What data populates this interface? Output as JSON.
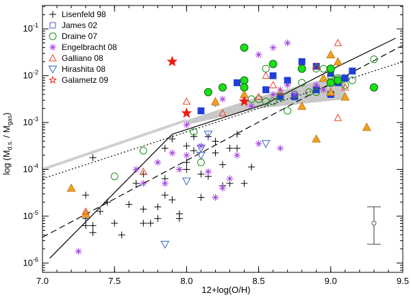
{
  "chart_data": {
    "type": "scatter",
    "xlabel": "12+log(O/H)",
    "ylabel": "log (M",
    "ylabel_sub1": "d.s.",
    "ylabel_mid": " / M",
    "ylabel_sub2": "gas",
    "ylabel_end": ")",
    "xlim": [
      7.0,
      9.5
    ],
    "ylim": [
      -6.2,
      -0.5
    ],
    "x_ticks": [
      7.0,
      7.5,
      8.0,
      8.5,
      9.0,
      9.5
    ],
    "x_tick_labels": [
      "7.0",
      "7.5",
      "8.0",
      "8.5",
      "9.0",
      "9.5"
    ],
    "y_ticks": [
      {
        "value": -1,
        "base": "10",
        "exp": "-1"
      },
      {
        "value": -2,
        "base": "10",
        "exp": "-2"
      },
      {
        "value": -3,
        "base": "10",
        "exp": "-3"
      },
      {
        "value": -4,
        "base": "10",
        "exp": "-4"
      },
      {
        "value": -5,
        "base": "10",
        "exp": "-5"
      },
      {
        "value": -6,
        "base": "10",
        "exp": "-6"
      }
    ],
    "legend_position": "top-left",
    "series": [
      {
        "name": "Lisenfeld 98",
        "marker": "plus",
        "color": "#000000",
        "points": [
          [
            7.35,
            -3.75
          ],
          [
            7.3,
            -4.55
          ],
          [
            7.4,
            -4.9
          ],
          [
            7.3,
            -5.05
          ],
          [
            7.3,
            -5.2
          ],
          [
            7.45,
            -4.7
          ],
          [
            7.35,
            -5.2
          ],
          [
            7.35,
            -5.35
          ],
          [
            7.5,
            -5.15
          ],
          [
            7.6,
            -4.75
          ],
          [
            7.7,
            -4.85
          ],
          [
            7.7,
            -4.1
          ],
          [
            7.7,
            -5.15
          ],
          [
            7.75,
            -5.15
          ],
          [
            7.8,
            -4.8
          ],
          [
            7.85,
            -3.55
          ],
          [
            7.85,
            -4.55
          ],
          [
            7.8,
            -5.05
          ],
          [
            7.9,
            -4.65
          ],
          [
            7.95,
            -4.95
          ],
          [
            7.95,
            -5.05
          ],
          [
            7.9,
            -3.35
          ],
          [
            8.0,
            -3.85
          ],
          [
            7.85,
            -4.2
          ],
          [
            8.0,
            -3.5
          ],
          [
            8.05,
            -3.3
          ],
          [
            8.1,
            -4.1
          ],
          [
            8.1,
            -4.6
          ],
          [
            8.15,
            -3.3
          ],
          [
            8.2,
            -3.4
          ],
          [
            8.3,
            -4.3
          ],
          [
            8.35,
            -3.25
          ],
          [
            8.25,
            -4.35
          ],
          [
            8.0,
            -4.0
          ],
          [
            8.15,
            -4.15
          ],
          [
            8.2,
            -3.65
          ],
          [
            8.05,
            -3.6
          ],
          [
            8.25,
            -3.9
          ],
          [
            8.3,
            -3.55
          ],
          [
            7.65,
            -4.3
          ],
          [
            7.55,
            -5.4
          ],
          [
            8.4,
            -4.3
          ],
          [
            8.45,
            -3.95
          ],
          [
            8.35,
            -3.55
          ]
        ]
      },
      {
        "name": "James 02",
        "marker": "square",
        "color": "#1f3fd6",
        "points": [
          [
            8.1,
            -2.75
          ],
          [
            8.35,
            -2.15
          ],
          [
            8.55,
            -2.3
          ],
          [
            8.6,
            -2.0
          ],
          [
            8.65,
            -2.45
          ],
          [
            8.7,
            -2.1
          ],
          [
            8.75,
            -2.45
          ],
          [
            8.8,
            -1.7
          ],
          [
            8.9,
            -2.3
          ],
          [
            9.0,
            -1.95
          ],
          [
            9.05,
            -2.15
          ],
          [
            9.0,
            -2.4
          ],
          [
            9.1,
            -2.05
          ],
          [
            9.15,
            -1.9
          ],
          [
            8.9,
            -1.8
          ]
        ]
      },
      {
        "name": "Draine 07",
        "marker": "circle-open",
        "color": "#1a8a1a",
        "points": [
          [
            7.7,
            -3.6
          ],
          [
            7.5,
            -4.15
          ],
          [
            8.05,
            -3.2
          ],
          [
            8.1,
            -3.85
          ],
          [
            8.5,
            -2.5
          ],
          [
            8.55,
            -2.55
          ],
          [
            8.6,
            -2.55
          ],
          [
            8.65,
            -2.45
          ],
          [
            8.75,
            -2.4
          ],
          [
            8.85,
            -2.35
          ],
          [
            8.9,
            -2.35
          ],
          [
            8.95,
            -1.85
          ],
          [
            8.9,
            -1.85
          ],
          [
            9.0,
            -2.0
          ],
          [
            9.05,
            -2.05
          ],
          [
            9.1,
            -2.2
          ],
          [
            9.15,
            -2.1
          ],
          [
            9.3,
            -1.65
          ],
          [
            8.7,
            -2.75
          ],
          [
            8.8,
            -2.15
          ],
          [
            8.45,
            -2.5
          ],
          [
            8.55,
            -1.85
          ]
        ]
      },
      {
        "name": "Draine 07 (filled)",
        "marker": "circle-filled",
        "color": "#19e019",
        "points": [
          [
            8.15,
            -2.35
          ],
          [
            8.25,
            -2.25
          ],
          [
            8.4,
            -1.4
          ],
          [
            8.4,
            -2.1
          ],
          [
            8.4,
            -2.25
          ],
          [
            8.6,
            -1.75
          ],
          [
            8.8,
            -1.85
          ],
          [
            9.0,
            -1.85
          ],
          [
            9.0,
            -2.15
          ],
          [
            9.05,
            -2.1
          ],
          [
            9.3,
            -2.25
          ]
        ]
      },
      {
        "name": "Engelbracht 08",
        "marker": "asterisk",
        "color": "#a040e0",
        "points": [
          [
            7.25,
            -5.75
          ],
          [
            7.65,
            -4.0
          ],
          [
            7.7,
            -4.3
          ],
          [
            7.8,
            -3.85
          ],
          [
            7.85,
            -4.3
          ],
          [
            7.9,
            -3.65
          ],
          [
            7.95,
            -4.0
          ],
          [
            8.0,
            -3.7
          ],
          [
            8.0,
            -3.05
          ],
          [
            8.1,
            -3.5
          ],
          [
            8.15,
            -4.05
          ],
          [
            8.2,
            -4.6
          ],
          [
            8.25,
            -4.4
          ],
          [
            8.3,
            -4.2
          ],
          [
            8.35,
            -3.7
          ],
          [
            8.2,
            -2.6
          ],
          [
            8.25,
            -2.5
          ],
          [
            8.4,
            -2.45
          ],
          [
            8.45,
            -2.65
          ],
          [
            8.5,
            -3.45
          ],
          [
            8.6,
            -2.4
          ],
          [
            8.65,
            -2.3
          ],
          [
            8.7,
            -2.2
          ],
          [
            8.75,
            -2.4
          ],
          [
            8.65,
            -3.55
          ],
          [
            8.6,
            -1.4
          ],
          [
            8.7,
            -1.3
          ],
          [
            8.9,
            -2.2
          ],
          [
            8.95,
            -2.3
          ],
          [
            8.5,
            -1.55
          ]
        ]
      },
      {
        "name": "Galliano 08",
        "marker": "triangle-up",
        "color": "#f0a020",
        "points": [
          [
            7.2,
            -4.4
          ],
          [
            7.3,
            -4.95
          ],
          [
            8.2,
            -2.55
          ],
          [
            8.4,
            -2.4
          ],
          [
            8.8,
            -2.65
          ],
          [
            8.9,
            -3.35
          ],
          [
            8.95,
            -2.05
          ],
          [
            9.0,
            -1.55
          ],
          [
            9.0,
            -2.35
          ],
          [
            9.05,
            -1.7
          ],
          [
            9.1,
            -2.45
          ],
          [
            9.25,
            -3.1
          ]
        ]
      },
      {
        "name": "Galliano 08 (open)",
        "marker": "triangle-open",
        "color": "#e84020",
        "points": [
          [
            7.3,
            -4.9
          ],
          [
            7.7,
            -4.05
          ],
          [
            8.0,
            -2.55
          ],
          [
            8.25,
            -2.8
          ],
          [
            8.5,
            -2.45
          ],
          [
            8.55,
            -2.0
          ],
          [
            8.6,
            -2.2
          ],
          [
            8.65,
            -2.35
          ],
          [
            8.9,
            -1.8
          ],
          [
            9.05,
            -1.3
          ],
          [
            9.05,
            -2.9
          ],
          [
            9.1,
            -2.25
          ]
        ]
      },
      {
        "name": "Hirashita 08",
        "marker": "triangle-down",
        "color": "#3060c0",
        "points": [
          [
            7.85,
            -5.6
          ],
          [
            8.0,
            -4.25
          ],
          [
            8.1,
            -3.55
          ],
          [
            8.15,
            -3.25
          ],
          [
            8.1,
            -3.7
          ],
          [
            8.55,
            -3.45
          ]
        ]
      },
      {
        "name": "Galametz 09",
        "marker": "star",
        "color": "#e82010",
        "points": [
          [
            7.9,
            -1.7
          ],
          [
            8.0,
            -2.8
          ],
          [
            8.4,
            -2.55
          ]
        ]
      }
    ],
    "lines": [
      {
        "name": "dashed-relation",
        "style": "dashed",
        "points": [
          [
            7.0,
            -5.45
          ],
          [
            9.5,
            -1.35
          ]
        ]
      },
      {
        "name": "dotted-relation",
        "style": "dotted",
        "points": [
          [
            7.0,
            -4.2
          ],
          [
            9.5,
            -1.7
          ]
        ]
      },
      {
        "name": "solid-broken-relation",
        "style": "solid",
        "points": [
          [
            7.05,
            -5.9
          ],
          [
            7.9,
            -3.25
          ],
          [
            8.55,
            -2.6
          ],
          [
            9.05,
            -1.8
          ],
          [
            9.45,
            -1.2
          ]
        ]
      },
      {
        "name": "light-gray-line",
        "style": "light",
        "points": [
          [
            7.0,
            -4.0
          ],
          [
            8.0,
            -2.95
          ]
        ]
      }
    ],
    "band": {
      "name": "model-band",
      "upper": [
        [
          8.0,
          -2.95
        ],
        [
          8.5,
          -2.45
        ],
        [
          9.1,
          -1.95
        ]
      ],
      "lower": [
        [
          8.0,
          -3.05
        ],
        [
          8.5,
          -2.7
        ],
        [
          9.1,
          -2.5
        ]
      ]
    },
    "error_bar": {
      "x": 9.3,
      "y": -5.15,
      "low": -5.6,
      "high": -4.8
    }
  }
}
